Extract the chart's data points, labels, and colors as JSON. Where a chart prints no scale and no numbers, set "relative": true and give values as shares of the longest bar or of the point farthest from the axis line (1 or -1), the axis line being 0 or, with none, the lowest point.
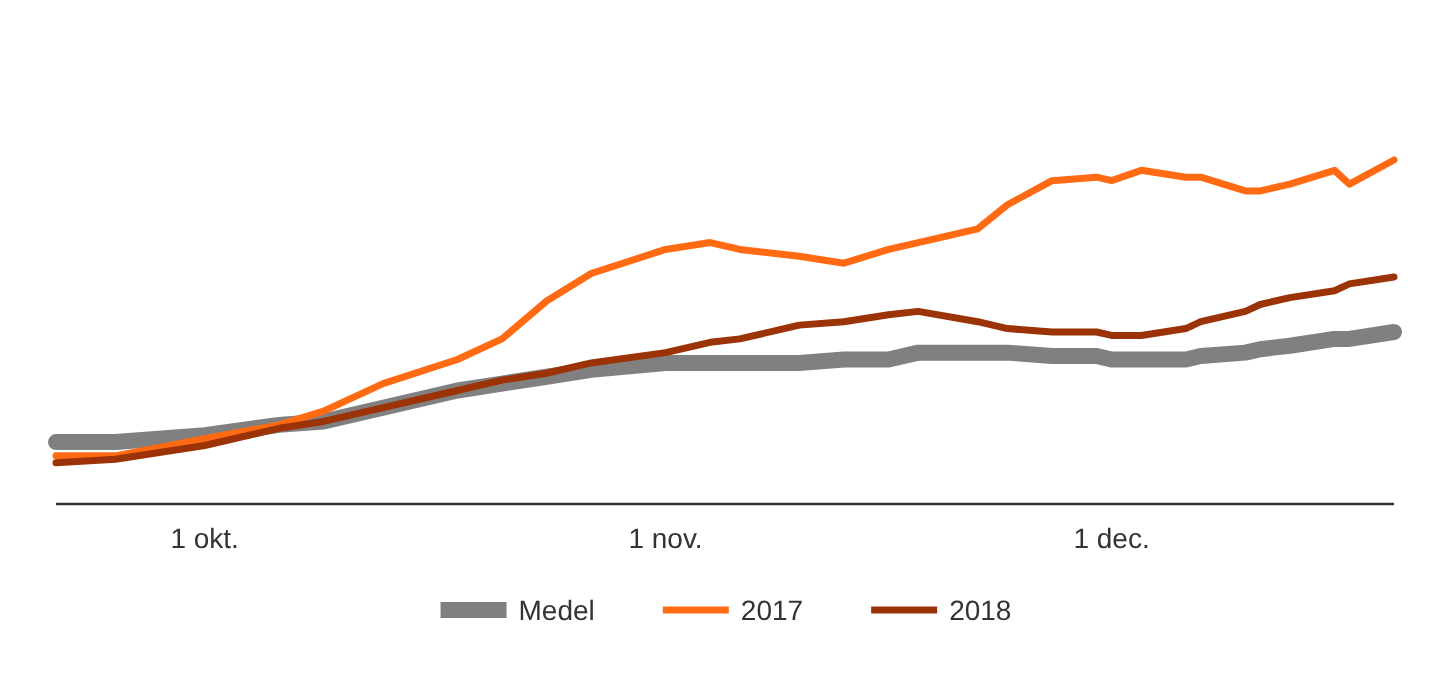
{
  "chart_data": {
    "type": "line",
    "relative": true,
    "legend": "bottom",
    "marker": "none",
    "line_style": "solid",
    "x": [
      "--09-21",
      "--09-25",
      "--10-01",
      "--10-06",
      "--10-09",
      "--10-13",
      "--10-18",
      "--10-21",
      "--10-24",
      "--10-27",
      "--11-01",
      "--11-04",
      "--11-06",
      "--11-10",
      "--11-13",
      "--11-16",
      "--11-18",
      "--11-22",
      "--11-24",
      "--11-27",
      "--11-30",
      "--12-01",
      "--12-03",
      "--12-06",
      "--12-07",
      "--12-10",
      "--12-11",
      "--12-13",
      "--12-16",
      "--12-17",
      "--12-20"
    ],
    "xlim": [
      "--09-21",
      "--12-20"
    ],
    "xticks": [
      {
        "value": "--10-01",
        "label": "1 okt."
      },
      {
        "value": "--11-01",
        "label": "1 nov."
      },
      {
        "value": "--12-01",
        "label": "1 dec."
      }
    ],
    "series": [
      {
        "name": "Medel",
        "color": "#808080",
        "values": [
          0.18,
          0.18,
          0.2,
          0.23,
          0.24,
          0.28,
          0.33,
          0.35,
          0.37,
          0.39,
          0.41,
          0.41,
          0.41,
          0.41,
          0.42,
          0.42,
          0.44,
          0.44,
          0.44,
          0.43,
          0.43,
          0.42,
          0.42,
          0.42,
          0.43,
          0.44,
          0.45,
          0.46,
          0.48,
          0.48,
          0.5
        ]
      },
      {
        "name": "2017",
        "color": "#ff6a13",
        "values": [
          0.14,
          0.14,
          0.19,
          0.23,
          0.27,
          0.35,
          0.42,
          0.48,
          0.59,
          0.67,
          0.74,
          0.76,
          0.74,
          0.72,
          0.7,
          0.74,
          0.76,
          0.8,
          0.87,
          0.94,
          0.95,
          0.94,
          0.97,
          0.95,
          0.95,
          0.91,
          0.91,
          0.93,
          0.97,
          0.93,
          1
        ]
      },
      {
        "name": "2018",
        "color": "#9c3306",
        "values": [
          0.12,
          0.13,
          0.17,
          0.22,
          0.24,
          0.28,
          0.33,
          0.36,
          0.38,
          0.41,
          0.44,
          0.47,
          0.48,
          0.52,
          0.53,
          0.55,
          0.56,
          0.53,
          0.51,
          0.5,
          0.5,
          0.49,
          0.49,
          0.51,
          0.53,
          0.56,
          0.58,
          0.6,
          0.62,
          0.64,
          0.66
        ]
      }
    ]
  }
}
